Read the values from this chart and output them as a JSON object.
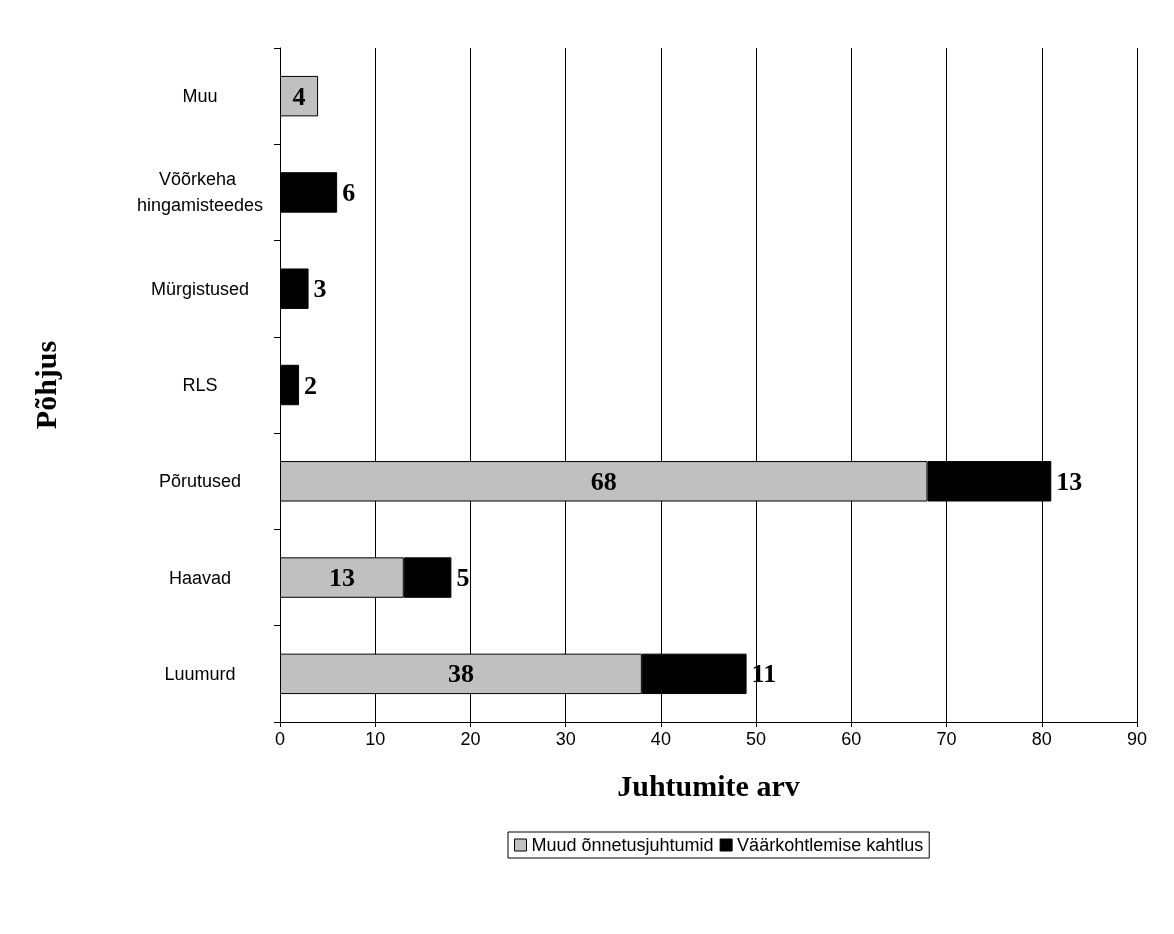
{
  "chart_data": {
    "type": "bar",
    "orientation": "horizontal",
    "stacked": true,
    "xlabel": "Juhtumite arv",
    "ylabel": "Põhjus",
    "categories": [
      "Muu",
      "Võõrkeha hingamisteedes",
      "Mürgistused",
      "RLS",
      "Põrutused",
      "Haavad",
      "Luumurd"
    ],
    "series": [
      {
        "name": "Muud õnnetusjuhtumid",
        "color": "#c0c0c0",
        "values": [
          4,
          null,
          null,
          null,
          68,
          13,
          38
        ]
      },
      {
        "name": "Väärkohtlemise kahtlus",
        "color": "#000000",
        "values": [
          null,
          6,
          3,
          2,
          13,
          5,
          11
        ]
      }
    ],
    "xlim": [
      0,
      90
    ],
    "xticks": [
      0,
      10,
      20,
      30,
      40,
      50,
      60,
      70,
      80,
      90
    ],
    "grid": "x",
    "legend": "bottom",
    "data_labels": true
  }
}
